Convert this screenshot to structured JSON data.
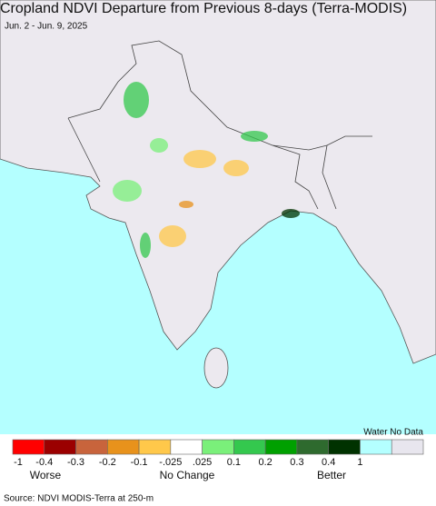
{
  "title": "Cropland NDVI Departure from Previous 8-days (Terra-MODIS)",
  "subtitle": "Jun. 2 - Jun. 9, 2025",
  "legend": {
    "header": "Water No Data",
    "colors": [
      "#ff0000",
      "#9b0000",
      "#c8643c",
      "#e8921c",
      "#ffc84a",
      "#ffffff",
      "#7af07a",
      "#34c84e",
      "#00a000",
      "#2e6a2e",
      "#003200",
      "#b4ffff",
      "#e8e6ee"
    ],
    "tick_labels": [
      "-1",
      "-0.4",
      "-0.3",
      "-0.2",
      "-0.1",
      "-.025",
      ".025",
      "0.1",
      "0.2",
      "0.3",
      "0.4",
      "1"
    ],
    "worse": "Worse",
    "no_change": "No Change",
    "better": "Better"
  },
  "source": "Source: NDVI MODIS-Terra at 250-m"
}
